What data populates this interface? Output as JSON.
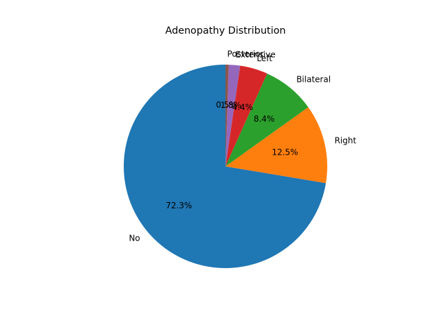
{
  "chart_data": {
    "type": "pie",
    "title": "Adenopathy Distribution",
    "categories": [
      "No",
      "Right",
      "Bilateral",
      "Left",
      "Extensive",
      "Posterior"
    ],
    "values": [
      72.3,
      12.5,
      8.4,
      4.4,
      1.8,
      0.5
    ],
    "percent_labels": [
      "72.3%",
      "12.5%",
      "8.4%",
      "4.4%",
      "1.8%",
      "0.5%"
    ],
    "colors": [
      "#1f77b4",
      "#ff7f0e",
      "#2ca02c",
      "#d62728",
      "#9467bd",
      "#8c564b"
    ],
    "start_angle_deg": 90,
    "direction": "counterclockwise"
  }
}
